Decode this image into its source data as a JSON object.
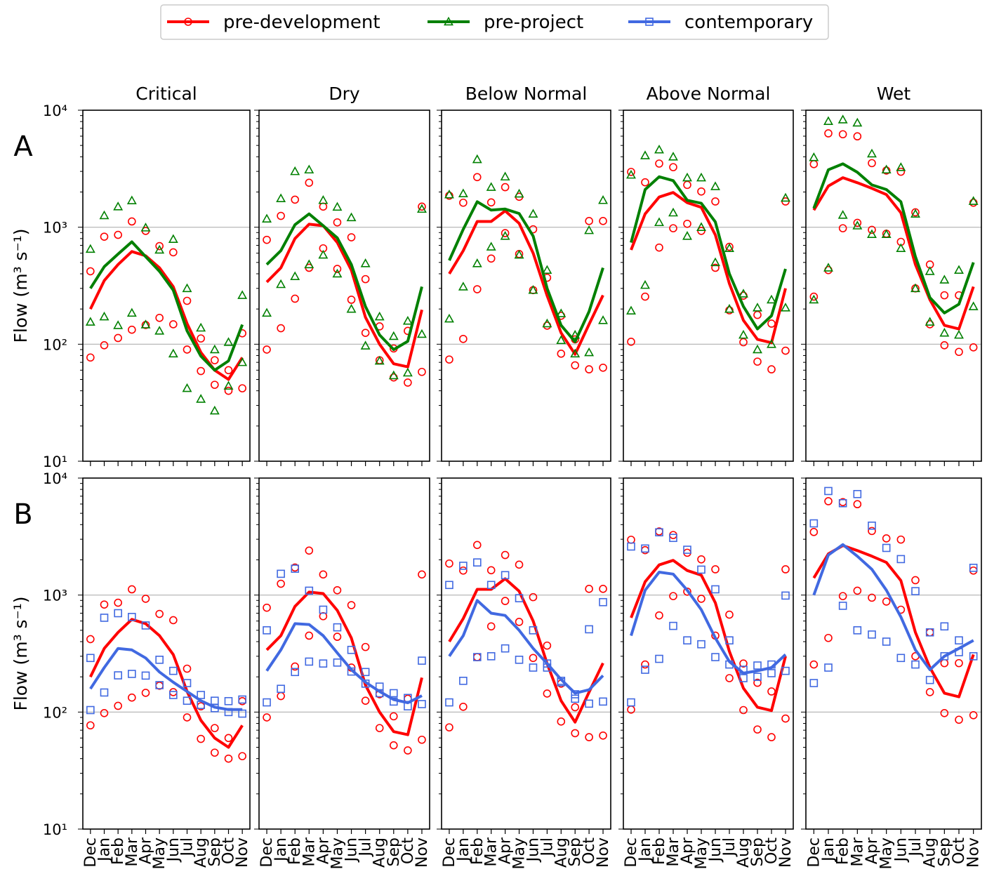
{
  "legend": {
    "placement": "top-center",
    "items": [
      {
        "label": "pre-development",
        "color": "#ff0000",
        "marker": "circle"
      },
      {
        "label": "pre-project",
        "color": "#008000",
        "marker": "triangle"
      },
      {
        "label": "contemporary",
        "color": "#4169e1",
        "marker": "square"
      }
    ]
  },
  "y_axis_label": "Flow (m³ s⁻¹)",
  "row_labels": [
    "A",
    "B"
  ],
  "columns": [
    "Critical",
    "Dry",
    "Below Normal",
    "Above Normal",
    "Wet"
  ],
  "months": [
    "Dec",
    "Jan",
    "Feb",
    "Mar",
    "Apr",
    "May",
    "Jun",
    "Jul",
    "Aug",
    "Sep",
    "Oct",
    "Nov"
  ],
  "y_ticks": [
    "10¹",
    "10²",
    "10³",
    "10⁴"
  ],
  "chart_data": {
    "type": "line",
    "yscale": "log",
    "ylim": [
      10,
      10000
    ],
    "grid": "horizontal at 10² and 10³",
    "x": [
      "Dec",
      "Jan",
      "Feb",
      "Mar",
      "Apr",
      "May",
      "Jun",
      "Jul",
      "Aug",
      "Sep",
      "Oct",
      "Nov"
    ],
    "panels": {
      "Critical": {
        "pre-development": {
          "median": [
            200,
            350,
            480,
            620,
            570,
            450,
            310,
            150,
            85,
            60,
            50,
            77
          ],
          "low": [
            77,
            98,
            113,
            133,
            146,
            168,
            148,
            90,
            59,
            45,
            40,
            42
          ],
          "high": [
            420,
            830,
            860,
            1120,
            930,
            690,
            610,
            235,
            112,
            73,
            60,
            124
          ]
        },
        "pre-project": {
          "median": [
            300,
            460,
            590,
            750,
            560,
            420,
            290,
            130,
            79,
            60,
            72,
            147
          ],
          "low": [
            155,
            172,
            145,
            185,
            147,
            130,
            83,
            42,
            34,
            27,
            44,
            70
          ],
          "high": [
            650,
            1260,
            1500,
            1690,
            990,
            640,
            790,
            300,
            138,
            90,
            104,
            262
          ]
        },
        "contemporary": {
          "median": [
            158,
            240,
            350,
            340,
            290,
            220,
            180,
            150,
            125,
            110,
            105,
            105
          ],
          "low": [
            104,
            147,
            206,
            212,
            205,
            170,
            140,
            125,
            115,
            108,
            100,
            97
          ],
          "high": [
            290,
            640,
            700,
            650,
            550,
            280,
            225,
            177,
            140,
            125,
            124,
            128
          ]
        }
      },
      "Dry": {
        "pre-development": {
          "median": [
            340,
            450,
            800,
            1060,
            1030,
            740,
            430,
            170,
            100,
            68,
            64,
            197
          ],
          "low": [
            90,
            137,
            245,
            450,
            660,
            440,
            240,
            125,
            73,
            52,
            47,
            58
          ],
          "high": [
            780,
            1250,
            1720,
            2400,
            1500,
            1100,
            820,
            360,
            142,
            92,
            130,
            1500
          ]
        },
        "pre-project": {
          "median": [
            480,
            630,
            1050,
            1300,
            1030,
            810,
            480,
            210,
            120,
            90,
            106,
            310
          ],
          "low": [
            185,
            325,
            380,
            480,
            580,
            400,
            200,
            97,
            72,
            54,
            57,
            122
          ],
          "high": [
            1180,
            1760,
            3000,
            3100,
            1700,
            1490,
            1210,
            490,
            172,
            117,
            158,
            1430
          ]
        },
        "contemporary": {
          "median": [
            225,
            340,
            570,
            560,
            450,
            320,
            230,
            180,
            150,
            128,
            120,
            138
          ],
          "low": [
            121,
            158,
            220,
            270,
            260,
            265,
            222,
            175,
            145,
            123,
            112,
            117
          ],
          "high": [
            500,
            1520,
            1680,
            1090,
            750,
            530,
            340,
            220,
            165,
            145,
            132,
            275
          ]
        }
      },
      "Below Normal": {
        "pre-development": {
          "median": [
            400,
            630,
            1120,
            1120,
            1380,
            1080,
            600,
            260,
            125,
            82,
            148,
            262
          ],
          "low": [
            74,
            111,
            295,
            540,
            890,
            590,
            290,
            144,
            83,
            66,
            61,
            63
          ],
          "high": [
            1860,
            1620,
            2680,
            1630,
            2200,
            1820,
            960,
            370,
            175,
            110,
            1130,
            1130
          ]
        },
        "pre-project": {
          "median": [
            520,
            960,
            1650,
            1400,
            1430,
            1310,
            840,
            300,
            145,
            105,
            190,
            450
          ],
          "low": [
            165,
            310,
            490,
            680,
            840,
            580,
            290,
            150,
            108,
            83,
            85,
            160
          ],
          "high": [
            1900,
            1940,
            3800,
            2200,
            2700,
            1930,
            1300,
            430,
            183,
            120,
            940,
            1700
          ]
        },
        "contemporary": {
          "median": [
            300,
            450,
            900,
            700,
            670,
            500,
            350,
            260,
            190,
            145,
            155,
            205
          ],
          "low": [
            121,
            185,
            295,
            300,
            350,
            280,
            240,
            240,
            180,
            130,
            118,
            123
          ],
          "high": [
            1220,
            1780,
            1900,
            1220,
            1480,
            940,
            500,
            260,
            185,
            142,
            510,
            870
          ]
        }
      },
      "Above Normal": {
        "pre-development": {
          "median": [
            640,
            1300,
            1810,
            1980,
            1620,
            1480,
            860,
            330,
            160,
            110,
            103,
            300
          ],
          "low": [
            105,
            255,
            670,
            980,
            1070,
            930,
            450,
            195,
            104,
            71,
            61,
            88
          ],
          "high": [
            2970,
            2420,
            3500,
            3260,
            2300,
            2020,
            1660,
            680,
            260,
            178,
            150,
            1660
          ]
        },
        "pre-project": {
          "median": [
            740,
            2100,
            2700,
            2500,
            1700,
            1600,
            1110,
            400,
            210,
            135,
            175,
            440
          ],
          "low": [
            193,
            320,
            1100,
            1330,
            840,
            1000,
            500,
            200,
            120,
            90,
            100,
            205
          ],
          "high": [
            2800,
            4100,
            4600,
            4000,
            2650,
            2650,
            2230,
            660,
            270,
            205,
            240,
            1780
          ]
        },
        "contemporary": {
          "median": [
            450,
            1100,
            1570,
            1510,
            1100,
            750,
            430,
            270,
            215,
            225,
            240,
            310
          ],
          "low": [
            121,
            230,
            285,
            545,
            410,
            380,
            295,
            255,
            195,
            200,
            215,
            225
          ],
          "high": [
            2600,
            2500,
            3440,
            3080,
            2440,
            1650,
            1120,
            410,
            230,
            250,
            255,
            990
          ]
        }
      },
      "Wet": {
        "pre-development": {
          "median": [
            1400,
            2250,
            2650,
            2400,
            2150,
            1900,
            1330,
            480,
            240,
            145,
            135,
            310
          ],
          "low": [
            255,
            430,
            980,
            1090,
            950,
            880,
            750,
            300,
            148,
            98,
            86,
            94
          ],
          "high": [
            3460,
            6340,
            6230,
            5980,
            3530,
            3050,
            2980,
            1340,
            480,
            262,
            262,
            1620
          ]
        },
        "pre-project": {
          "median": [
            1450,
            3100,
            3480,
            2950,
            2300,
            2100,
            1650,
            560,
            250,
            185,
            220,
            500
          ],
          "low": [
            240,
            450,
            1270,
            1030,
            870,
            870,
            660,
            300,
            155,
            125,
            120,
            210
          ],
          "high": [
            3950,
            8050,
            8300,
            7800,
            4250,
            3100,
            3250,
            1300,
            420,
            355,
            430,
            1670
          ]
        },
        "contemporary": {
          "median": [
            1000,
            2200,
            2700,
            2150,
            1660,
            1100,
            650,
            340,
            230,
            300,
            350,
            410
          ],
          "low": [
            177,
            240,
            810,
            500,
            460,
            400,
            290,
            255,
            188,
            300,
            325,
            300
          ],
          "high": [
            4100,
            7750,
            6100,
            7300,
            3920,
            2530,
            2030,
            1080,
            480,
            540,
            410,
            1710
          ]
        }
      }
    }
  }
}
